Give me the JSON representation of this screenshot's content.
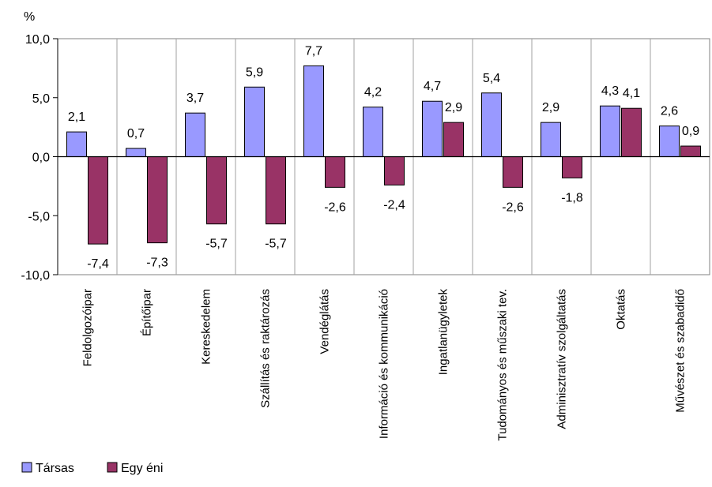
{
  "chart_data": {
    "type": "bar",
    "ylabel": "%",
    "ylim": [
      -10,
      10
    ],
    "yticks": [
      "10,0",
      "5,0",
      "0,0",
      "-5,0",
      "-10,0"
    ],
    "categories": [
      "Feldolgozóipar",
      "Építőipar",
      "Kereskedelem",
      "Szállítás és raktározás",
      "Vendéglátás",
      "Információ és kommunikáció",
      "Ingatlanügyletek",
      "Tudományos és műszaki tev.",
      "Adminisztratív szolgáltatás",
      "Oktatás",
      "Művészet és szabadidő"
    ],
    "series": [
      {
        "name": "Társas",
        "color": "#9999ff",
        "values": [
          2.1,
          0.7,
          3.7,
          5.9,
          7.7,
          4.2,
          4.7,
          5.4,
          2.9,
          4.3,
          2.6
        ],
        "labels": [
          "2,1",
          "0,7",
          "3,7",
          "5,9",
          "7,7",
          "4,2",
          "4,7",
          "5,4",
          "2,9",
          "4,3",
          "2,6"
        ]
      },
      {
        "name": "Egy éni",
        "color": "#993366",
        "values": [
          -7.4,
          -7.3,
          -5.7,
          -5.7,
          -2.6,
          -2.4,
          2.9,
          -2.6,
          -1.8,
          4.1,
          0.9
        ],
        "labels": [
          "-7,4",
          "-7,3",
          "-5,7",
          "-5,7",
          "-2,6",
          "-2,4",
          "2,9",
          "-2,6",
          "-1,8",
          "4,1",
          "0,9"
        ]
      }
    ],
    "grid": "vertical category separators",
    "legend": "bottom-left"
  }
}
